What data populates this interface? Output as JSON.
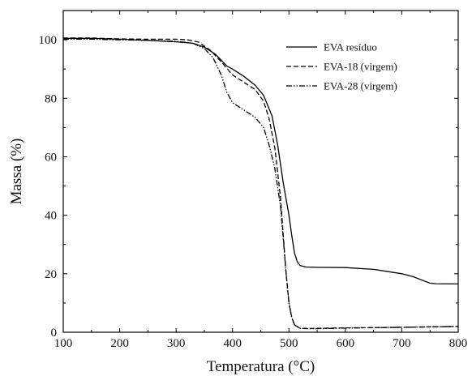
{
  "chart_data": {
    "type": "line",
    "title": "",
    "xlabel": "Temperatura (°C)",
    "ylabel": "Massa (%)",
    "xlim": [
      100,
      800
    ],
    "ylim": [
      0,
      110
    ],
    "xticks": [
      100,
      200,
      300,
      400,
      500,
      600,
      700,
      800
    ],
    "yticks": [
      0,
      20,
      40,
      60,
      80,
      100
    ],
    "grid": false,
    "legend_position": "top-right",
    "series": [
      {
        "name": "EVA resíduo",
        "style": "solid",
        "color": "#000000",
        "x": [
          100,
          150,
          200,
          250,
          300,
          330,
          350,
          370,
          390,
          400,
          420,
          440,
          455,
          470,
          480,
          490,
          500,
          505,
          510,
          515,
          520,
          530,
          550,
          600,
          650,
          700,
          720,
          740,
          750,
          760,
          800
        ],
        "y": [
          100.5,
          100.5,
          100.2,
          99.8,
          99.3,
          98.8,
          97.5,
          95,
          91,
          90,
          87.5,
          84.5,
          81,
          74,
          64,
          51,
          40,
          33,
          27,
          24,
          22.8,
          22.3,
          22.2,
          22.1,
          21.5,
          20,
          19,
          17.5,
          16.8,
          16.6,
          16.5
        ]
      },
      {
        "name": "EVA-18 (virgem)",
        "style": "dashed",
        "color": "#000000",
        "x": [
          100,
          150,
          200,
          250,
          300,
          320,
          340,
          360,
          380,
          400,
          420,
          440,
          455,
          465,
          475,
          485,
          490,
          495,
          500,
          505,
          510,
          520,
          540,
          600,
          700,
          800
        ],
        "y": [
          100.6,
          100.6,
          100.3,
          100.2,
          100.2,
          100,
          99.2,
          96.5,
          92.5,
          88,
          85.5,
          83,
          79,
          73,
          63,
          46,
          33,
          20,
          10,
          5,
          2.5,
          1.3,
          1.3,
          1.5,
          1.7,
          2.0
        ]
      },
      {
        "name": "EVA-28 (virgem)",
        "style": "dashdotdot",
        "color": "#000000",
        "x": [
          100,
          150,
          200,
          250,
          300,
          330,
          350,
          365,
          380,
          390,
          400,
          420,
          440,
          455,
          465,
          475,
          485,
          490,
          495,
          500,
          505,
          510,
          520,
          540,
          600,
          700,
          800
        ],
        "y": [
          100.2,
          100.2,
          100,
          99.8,
          99.5,
          98.8,
          97,
          94,
          88,
          82,
          78.5,
          76,
          73.5,
          70,
          64,
          56,
          43,
          32,
          20,
          10,
          5,
          2.5,
          1.3,
          1.2,
          1.4,
          1.7,
          2.0
        ]
      }
    ]
  }
}
